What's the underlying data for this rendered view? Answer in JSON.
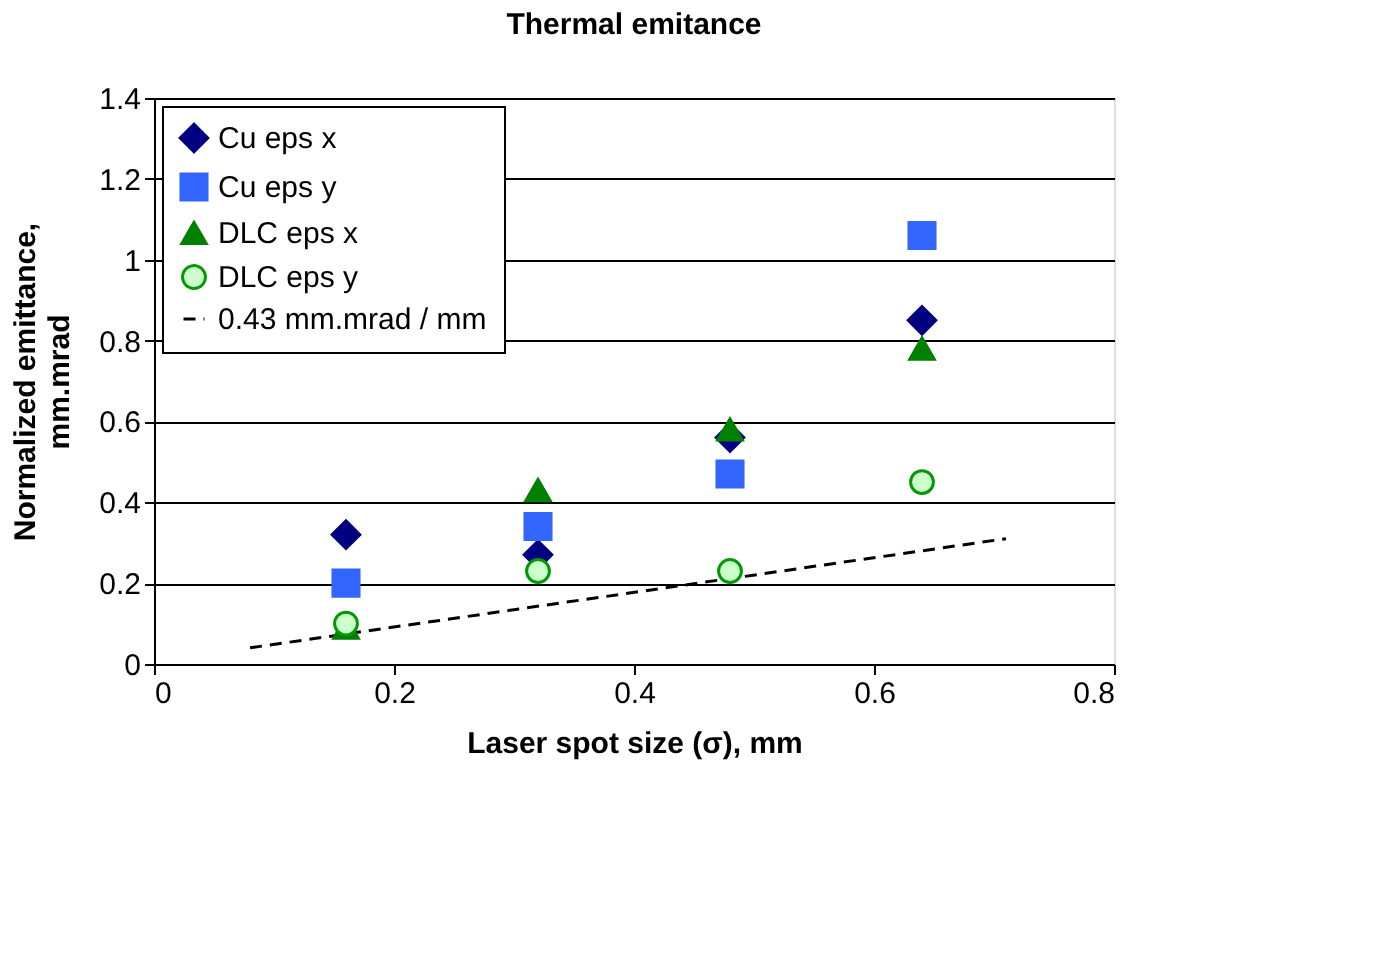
{
  "chart_data": {
    "type": "scatter",
    "title": "Thermal emitance",
    "xlabel": "Laser spot size (σ), mm",
    "ylabel": "Normalized emittance, mm.mrad",
    "x": [
      0.16,
      0.32,
      0.48,
      0.64
    ],
    "series": [
      {
        "name": "Cu eps x",
        "color": "#000080",
        "marker": "diamond",
        "values": [
          0.32,
          0.27,
          0.56,
          0.85
        ]
      },
      {
        "name": "Cu eps y",
        "color": "#3366ff",
        "marker": "square",
        "values": [
          0.2,
          0.34,
          0.47,
          1.06
        ]
      },
      {
        "name": "DLC eps x",
        "color": "#008000",
        "marker": "triangle",
        "values": [
          0.09,
          0.43,
          0.58,
          0.78
        ]
      },
      {
        "name": "DLC eps y",
        "color": "#ccffcc",
        "marker": "circle",
        "values": [
          0.1,
          0.23,
          0.23,
          0.45
        ]
      },
      {
        "name": "0.43 mm.mrad / mm",
        "type": "line",
        "color": "#000000",
        "line_style": "dashed",
        "marker": "none",
        "x": [
          0.08,
          0.71
        ],
        "values": [
          0.04,
          0.31
        ]
      }
    ],
    "xlim": [
      0,
      0.8
    ],
    "xticks": [
      0,
      0.2,
      0.4,
      0.6,
      0.8
    ],
    "ylim": [
      0,
      1.4
    ],
    "yticks": [
      0,
      0.2,
      0.4,
      0.6,
      0.8,
      1,
      1.2,
      1.4
    ],
    "grid": "y",
    "legend": "top left"
  }
}
